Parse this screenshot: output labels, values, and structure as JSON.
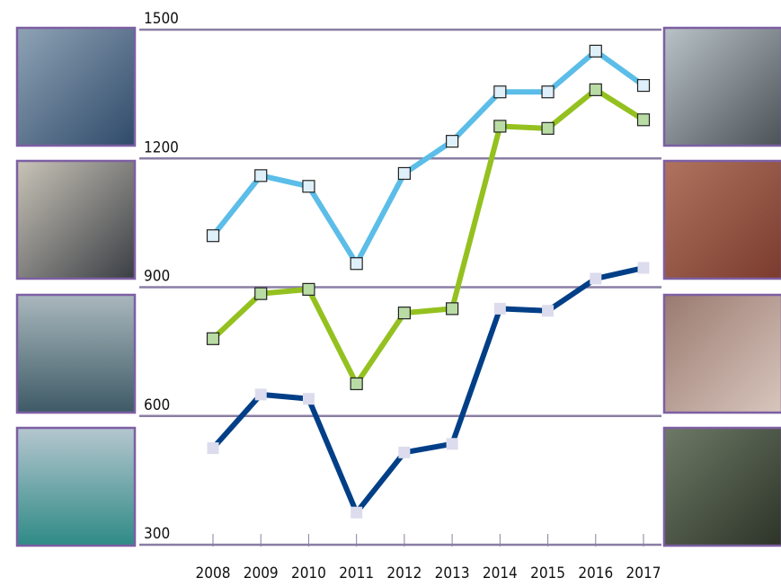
{
  "chart_data": {
    "type": "line",
    "categories": [
      "2008",
      "2009",
      "2010",
      "2011",
      "2012",
      "2013",
      "2014",
      "2015",
      "2016",
      "2017"
    ],
    "series": [
      {
        "color": "#5bbde8",
        "values": [
          1020,
          1160,
          1135,
          955,
          1165,
          1240,
          1355,
          1355,
          1450,
          1370
        ]
      },
      {
        "color": "#94c11f",
        "values": [
          780,
          885,
          895,
          675,
          840,
          850,
          1275,
          1270,
          1360,
          1290
        ]
      },
      {
        "color": "#003f87",
        "values": [
          525,
          650,
          640,
          375,
          515,
          535,
          850,
          845,
          920,
          945
        ]
      }
    ],
    "ylim": [
      300,
      1500
    ],
    "yticks": [
      300,
      600,
      900,
      1200,
      1500
    ],
    "grid": true
  }
}
